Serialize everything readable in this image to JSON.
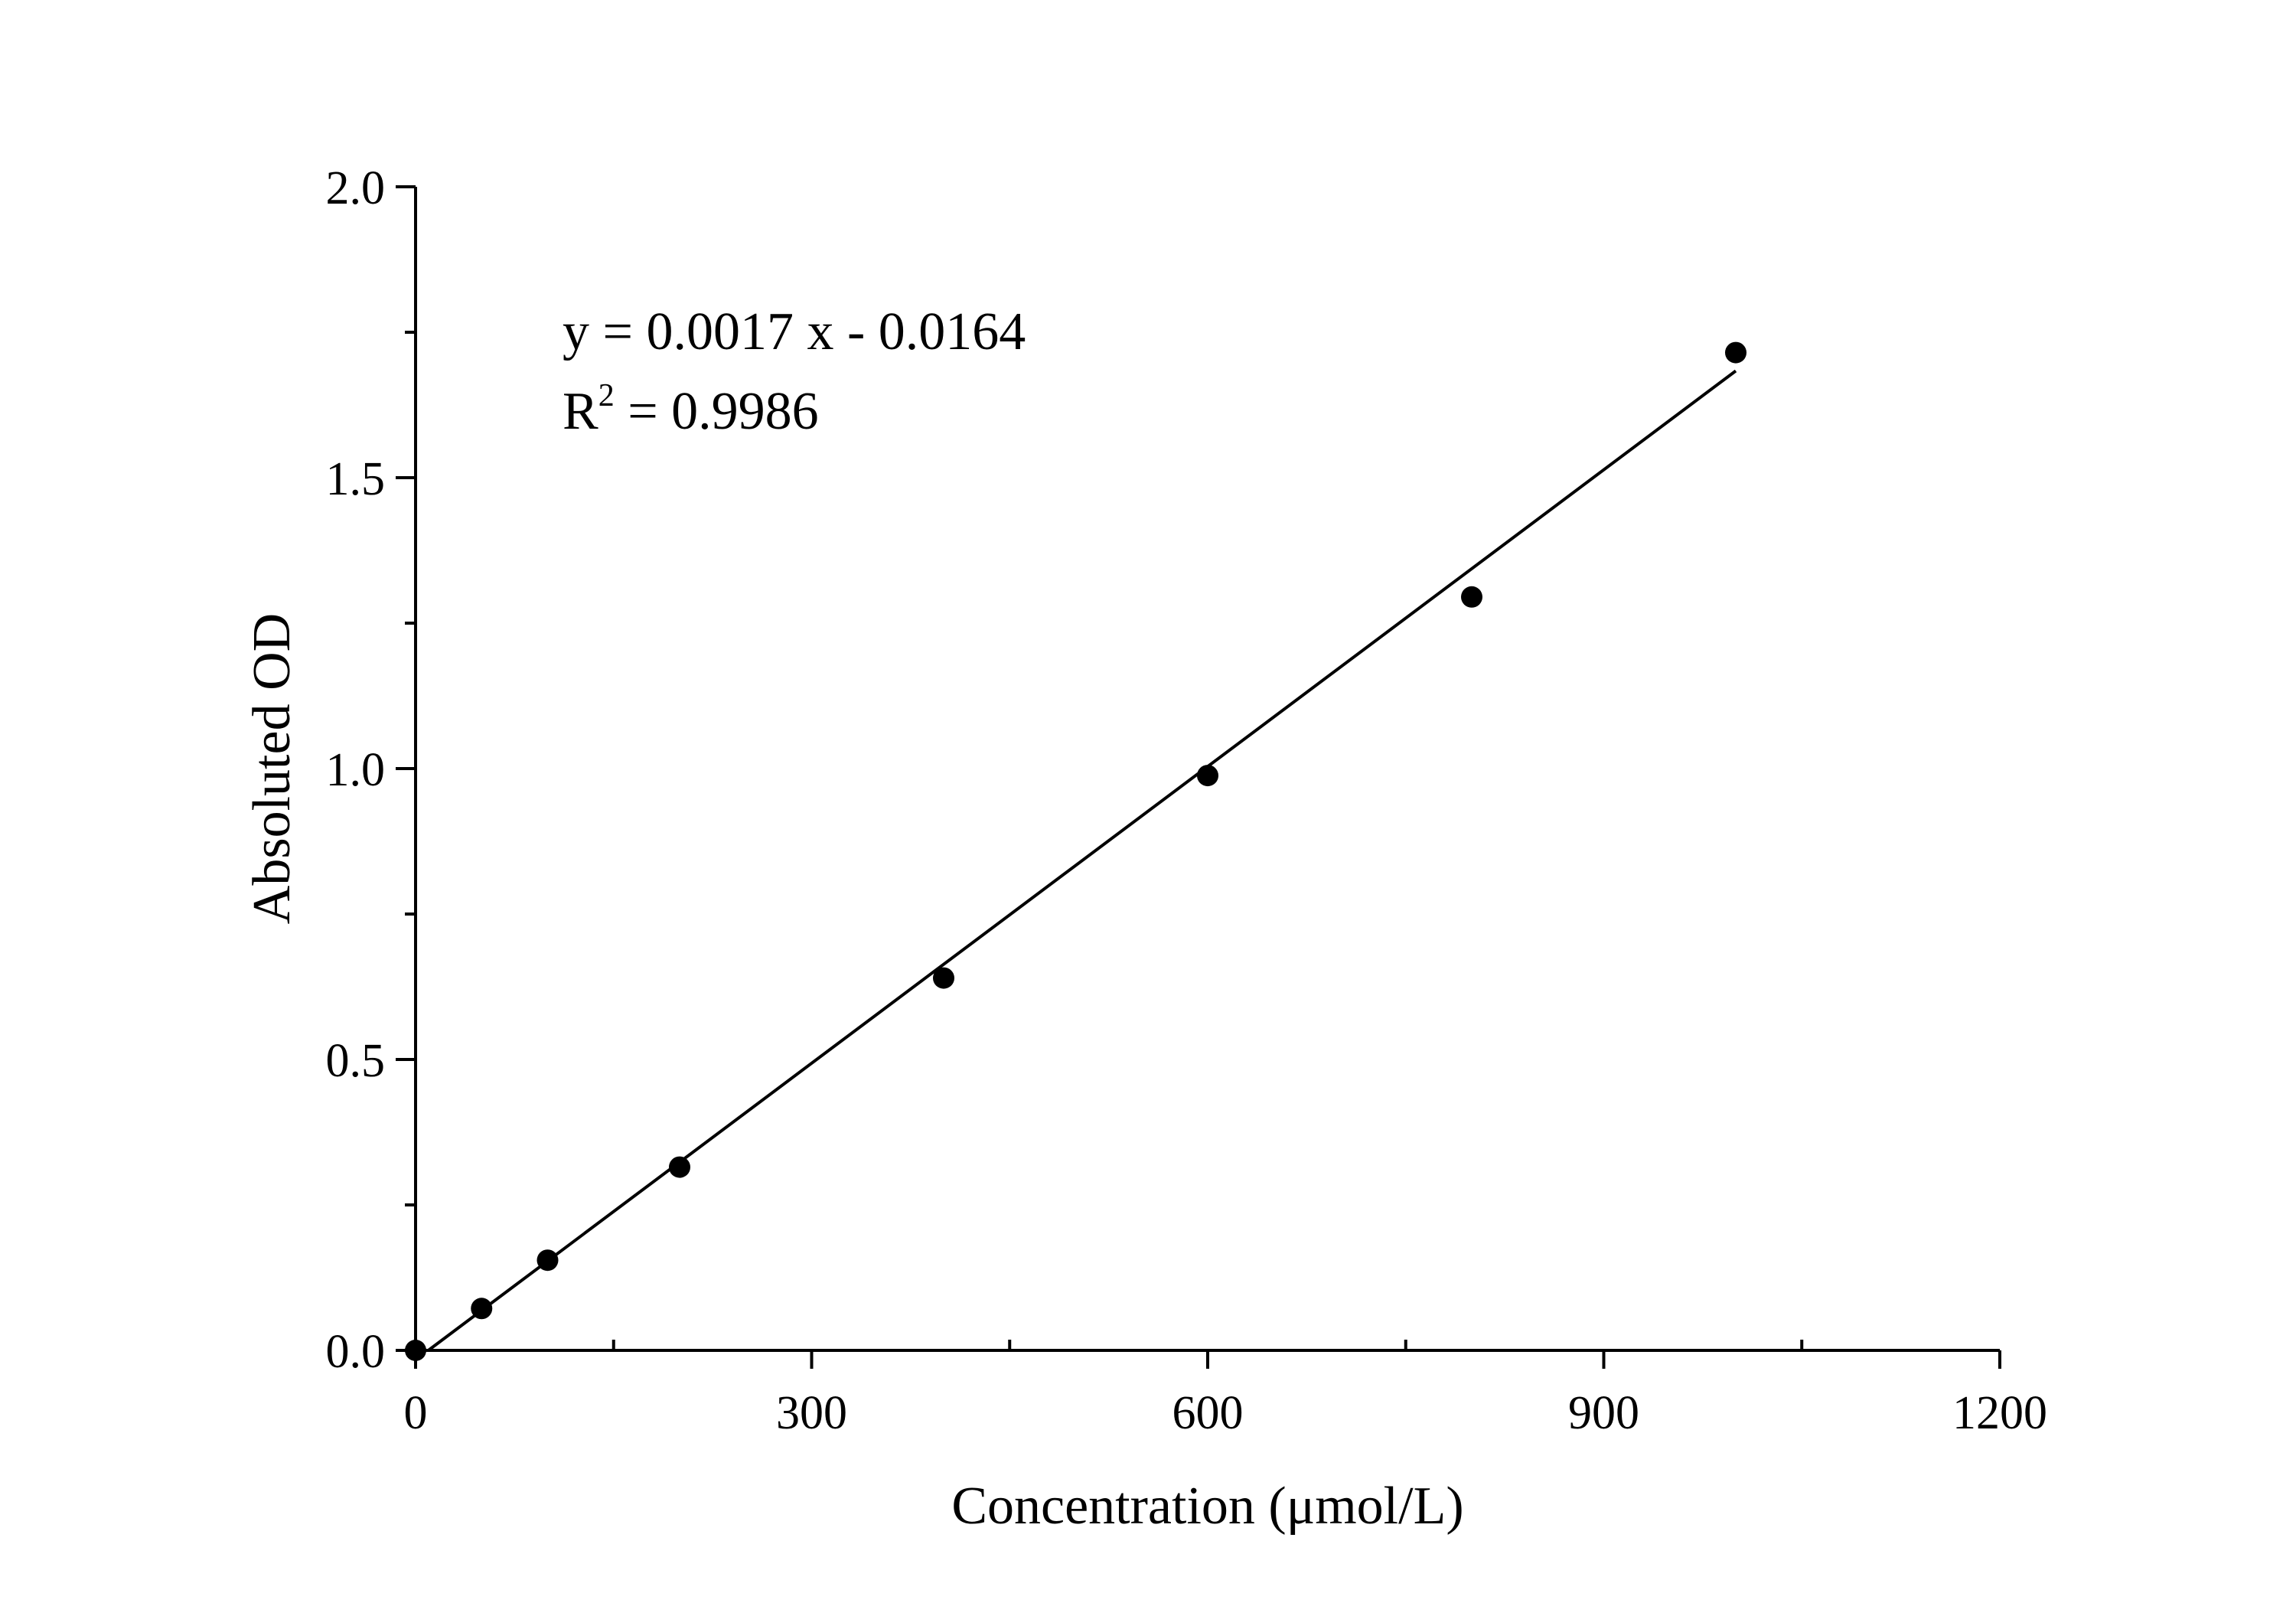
{
  "chart_data": {
    "type": "scatter",
    "title": "",
    "xlabel": "Concentration (μmol/L)",
    "ylabel": "Absoluted OD",
    "xlim": [
      0,
      1200
    ],
    "ylim": [
      0,
      2.0
    ],
    "x_ticks": [
      0,
      300,
      600,
      900,
      1200
    ],
    "x_tick_labels": [
      "0",
      "300",
      "600",
      "900",
      "1200"
    ],
    "x_minor_ticks": [
      150,
      450,
      750,
      1050
    ],
    "y_ticks": [
      0,
      0.5,
      1.0,
      1.5,
      2.0
    ],
    "y_tick_labels": [
      "0.0",
      "0.5",
      "1.0",
      "1.5",
      "2.0"
    ],
    "y_minor_ticks": [
      0.25,
      0.75,
      1.25,
      1.75
    ],
    "grid": false,
    "series": [
      {
        "x": [
          0,
          50,
          100,
          200,
          400,
          600,
          800,
          1000
        ],
        "y": [
          0.0,
          0.072,
          0.155,
          0.315,
          0.64,
          0.988,
          1.295,
          1.715
        ]
      }
    ],
    "fit": {
      "slope": 0.0017,
      "intercept": -0.0164,
      "x_range": [
        0,
        1000
      ]
    },
    "annotations": {
      "equation": "y = 0.0017 x - 0.0164",
      "r2_prefix": "R",
      "r2_sup": "2",
      "r2_value": " = 0.9986"
    },
    "colors": {
      "points": "#000000",
      "line": "#000000"
    }
  }
}
